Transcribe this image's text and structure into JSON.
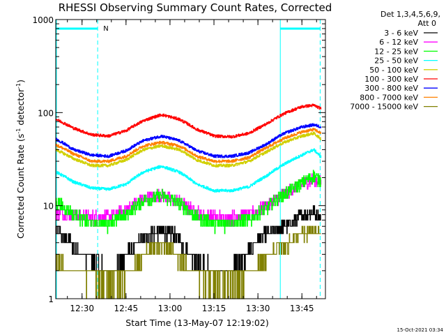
{
  "chart_data": {
    "type": "line",
    "title": "RHESSI Observing Summary Count Rates, Corrected",
    "xlabel": "Start Time (13-May-07 12:19:02)",
    "ylabel_main": "Corrected Count Rate (s",
    "ylabel_sup1": "-1",
    "ylabel_mid": " detector",
    "ylabel_sup2": "-1",
    "ylabel_end": ")",
    "x_range_minutes": [
      0,
      92
    ],
    "y_range": [
      1,
      1000
    ],
    "y_scale": "log",
    "x_ticks": [
      {
        "minute": 8.97,
        "label": "12:30"
      },
      {
        "minute": 23.97,
        "label": "12:45"
      },
      {
        "minute": 38.97,
        "label": "13:00"
      },
      {
        "minute": 53.97,
        "label": "13:15"
      },
      {
        "minute": 68.97,
        "label": "13:30"
      },
      {
        "minute": 83.97,
        "label": "13:45"
      }
    ],
    "y_ticks": [
      {
        "value": 1,
        "label": "1"
      },
      {
        "value": 10,
        "label": "10"
      },
      {
        "value": 100,
        "label": "100"
      },
      {
        "value": 1000,
        "label": "1000"
      }
    ],
    "legend_header": [
      "Det 1,3,4,5,6,9,",
      "Att 0"
    ],
    "legend_placement": "right",
    "night_intervals": [
      [
        0,
        14.3
      ],
      [
        76.6,
        90.2
      ]
    ],
    "saa_flag": {
      "minute": 15.5,
      "label": "N"
    },
    "series": [
      {
        "name": "3 - 6 keV",
        "color": "#000000",
        "x": [
          0,
          8,
          14,
          18,
          22,
          26,
          32,
          36,
          40,
          44,
          48,
          54,
          60,
          64,
          68,
          72,
          76,
          80,
          84,
          88,
          90.5
        ],
        "y": [
          5.5,
          3.2,
          2.5,
          2.0,
          2.3,
          3.5,
          5.0,
          5.3,
          5.0,
          3.5,
          2.5,
          2.0,
          2.1,
          2.6,
          4.0,
          5.0,
          5.5,
          6.5,
          8.0,
          8.5,
          7.5
        ]
      },
      {
        "name": "6 - 12 keV",
        "color": "#ff00ff",
        "x": [
          0,
          6,
          12,
          18,
          24,
          30,
          36,
          42,
          48,
          54,
          60,
          66,
          72,
          78,
          84,
          88,
          90.5
        ],
        "y": [
          8.5,
          8.0,
          7.5,
          7.6,
          9.0,
          12.0,
          13.0,
          11.0,
          8.5,
          7.5,
          7.5,
          8.0,
          10.0,
          13.5,
          17.0,
          19.5,
          18.0
        ]
      },
      {
        "name": "12 - 25 keV",
        "color": "#00ff00",
        "x": [
          0,
          6,
          12,
          18,
          24,
          30,
          36,
          42,
          48,
          54,
          60,
          66,
          72,
          78,
          84,
          88,
          90.5
        ],
        "y": [
          11.0,
          8.0,
          6.5,
          6.5,
          8.0,
          11.5,
          13.0,
          10.5,
          7.5,
          6.5,
          6.5,
          7.0,
          9.5,
          13.5,
          17.5,
          21.0,
          18.0
        ]
      },
      {
        "name": "25 - 50 keV",
        "color": "#00ffff",
        "x": [
          0,
          6,
          12,
          18,
          24,
          30,
          36,
          42,
          48,
          54,
          60,
          66,
          72,
          78,
          84,
          88,
          90.5
        ],
        "y": [
          23,
          18,
          15.5,
          15,
          17,
          23,
          26.5,
          23,
          17,
          14.5,
          14.5,
          16,
          21,
          28,
          35,
          40,
          33
        ]
      },
      {
        "name": "50 - 100 keV",
        "color": "#d0d000",
        "x": [
          0,
          6,
          12,
          18,
          24,
          30,
          36,
          42,
          48,
          54,
          60,
          66,
          72,
          78,
          84,
          88,
          90.5
        ],
        "y": [
          40,
          32,
          27,
          27,
          31,
          40,
          44,
          40,
          31,
          27,
          27,
          30,
          38,
          48,
          56,
          60,
          52
        ]
      },
      {
        "name": "100 - 300 keV",
        "color": "#ff0000",
        "x": [
          0,
          6,
          12,
          18,
          24,
          30,
          36,
          42,
          48,
          54,
          60,
          66,
          72,
          78,
          84,
          88,
          90.5
        ],
        "y": [
          85,
          68,
          58,
          56,
          64,
          82,
          95,
          85,
          66,
          56,
          55,
          60,
          76,
          98,
          116,
          120,
          110
        ]
      },
      {
        "name": "300 - 800 keV",
        "color": "#0000ff",
        "x": [
          0,
          6,
          12,
          18,
          24,
          30,
          36,
          42,
          48,
          54,
          60,
          66,
          72,
          78,
          84,
          88,
          90.5
        ],
        "y": [
          52,
          40,
          35,
          34,
          39,
          50,
          56,
          50,
          39,
          34,
          34,
          37,
          46,
          60,
          70,
          74,
          70
        ]
      },
      {
        "name": "800 - 7000 keV",
        "color": "#ff8000",
        "x": [
          0,
          6,
          12,
          18,
          24,
          30,
          36,
          42,
          48,
          54,
          60,
          66,
          72,
          78,
          84,
          88,
          90.5
        ],
        "y": [
          45,
          36,
          30,
          30,
          34,
          44,
          48,
          44,
          34,
          30,
          30,
          33,
          42,
          53,
          62,
          66,
          60
        ]
      },
      {
        "name": "7000 - 15000 keV",
        "color": "#808000",
        "x": [
          0,
          8,
          14,
          18,
          22,
          26,
          32,
          36,
          40,
          44,
          48,
          54,
          60,
          64,
          68,
          72,
          76,
          80,
          84,
          88,
          90.5
        ],
        "y": [
          2.5,
          1.8,
          1.6,
          1.5,
          1.6,
          2.0,
          3.3,
          3.8,
          3.3,
          2.3,
          1.7,
          1.5,
          1.5,
          1.6,
          2.2,
          2.8,
          3.5,
          4.0,
          5.0,
          5.3,
          4.8
        ]
      }
    ]
  },
  "timestamp": "15-Oct-2021 03:34",
  "colors": {
    "night": "#00ffff",
    "axes": "#000000"
  }
}
